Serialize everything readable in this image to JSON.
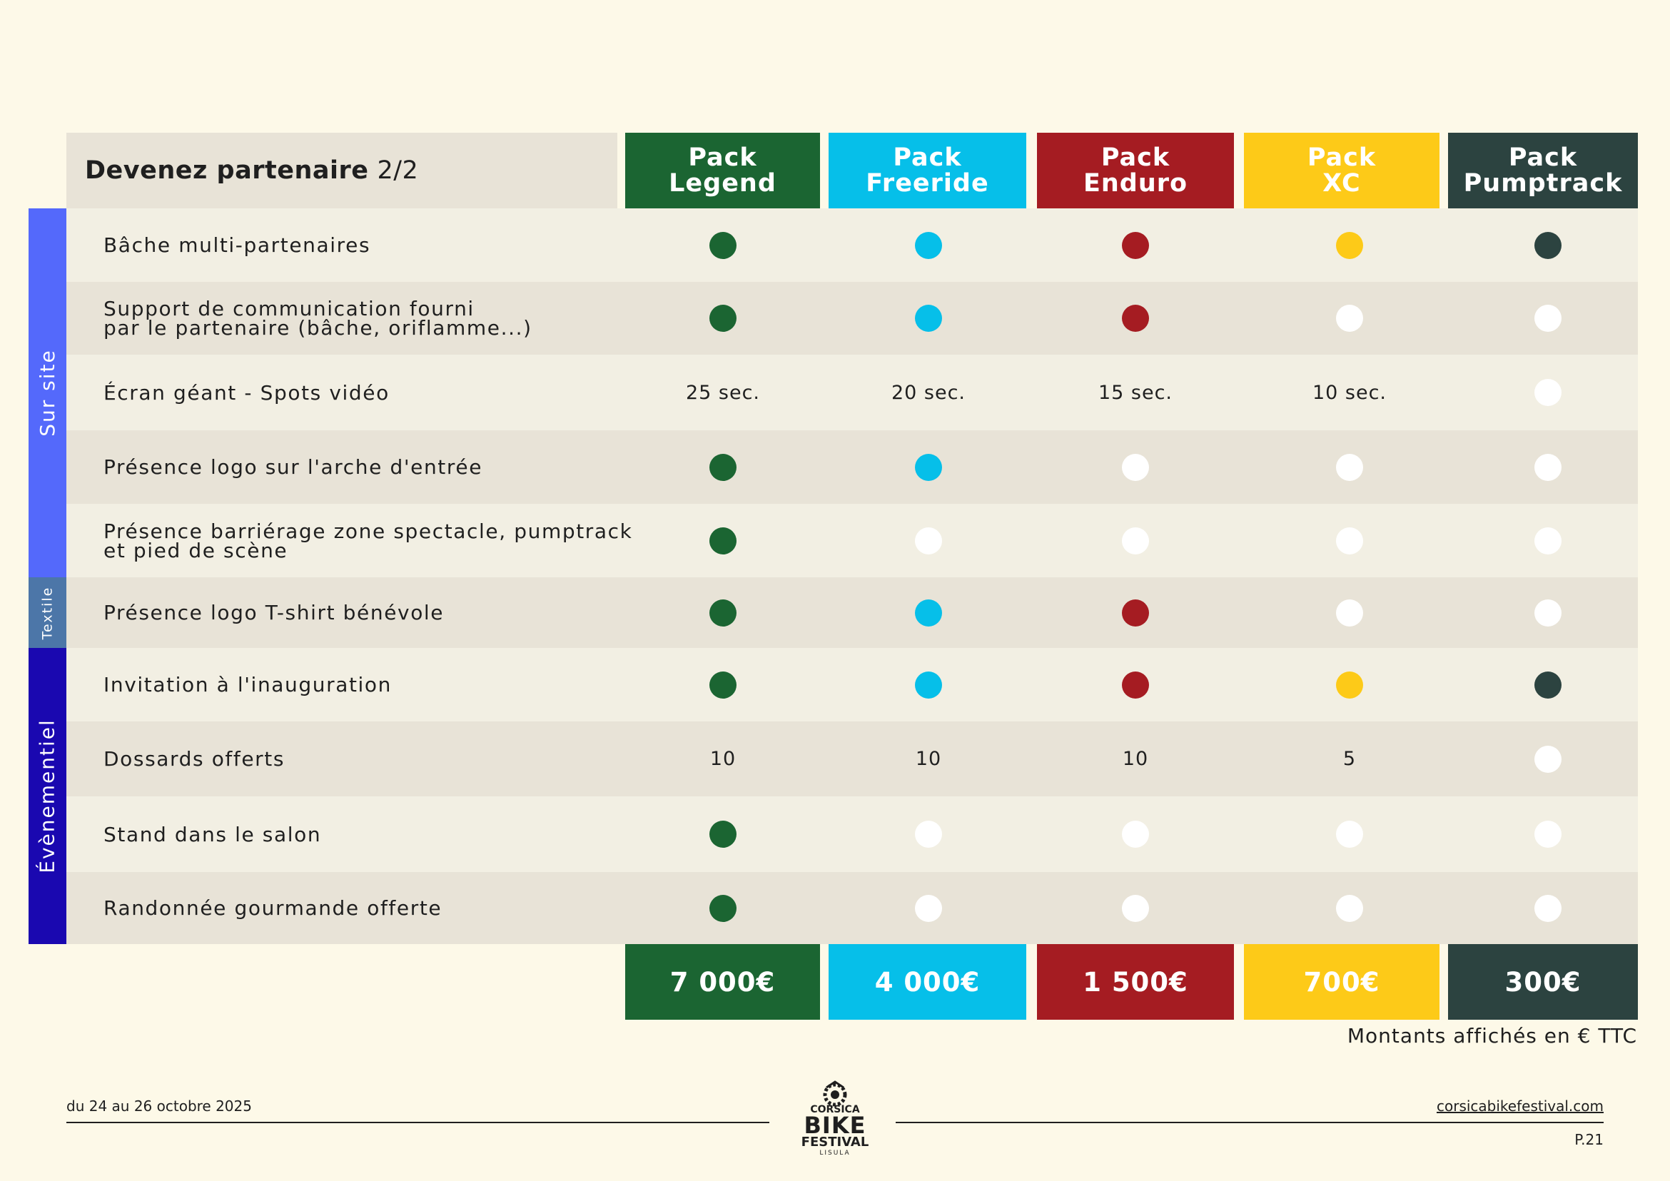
{
  "title": {
    "main": "Devenez partenaire",
    "page": "2/2"
  },
  "packs": [
    {
      "line1": "Pack",
      "line2": "Legend",
      "color": "#1b6532",
      "price": "7 000€"
    },
    {
      "line1": "Pack",
      "line2": "Freeride",
      "color": "#06bfe9",
      "price": "4 000€"
    },
    {
      "line1": "Pack",
      "line2": "Enduro",
      "color": "#a51c22",
      "price": "1 500€"
    },
    {
      "line1": "Pack",
      "line2": "XC",
      "color": "#fdca18",
      "price": "700€"
    },
    {
      "line1": "Pack",
      "line2": "Pumptrack",
      "color": "#2c4340",
      "price": "300€"
    }
  ],
  "sections": [
    {
      "label": "Sur site",
      "color": "#5469fb"
    },
    {
      "label": "Textile",
      "color": "#4c76a8"
    },
    {
      "label": "Évènementiel",
      "color": "#1a08b0"
    }
  ],
  "rows": [
    {
      "label": [
        "Bâche multi-partenaires"
      ],
      "cells": [
        "dot",
        "dot",
        "dot",
        "dot",
        "dot"
      ]
    },
    {
      "label": [
        "Support de communication fourni",
        "par le partenaire (bâche, oriflamme...)"
      ],
      "cells": [
        "dot",
        "dot",
        "dot",
        "empty",
        "empty"
      ]
    },
    {
      "label": [
        "Écran géant - Spots vidéo"
      ],
      "cells": [
        "25 sec.",
        "20 sec.",
        "15 sec.",
        "10 sec.",
        "empty"
      ]
    },
    {
      "label": [
        "Présence logo sur l'arche d'entrée"
      ],
      "cells": [
        "dot",
        "dot",
        "empty",
        "empty",
        "empty"
      ]
    },
    {
      "label": [
        "Présence barriérage zone spectacle, pumptrack",
        "et pied de scène"
      ],
      "cells": [
        "dot",
        "empty",
        "empty",
        "empty",
        "empty"
      ]
    },
    {
      "label": [
        "Présence logo T-shirt bénévole"
      ],
      "cells": [
        "dot",
        "dot",
        "dot",
        "empty",
        "empty"
      ]
    },
    {
      "label": [
        "Invitation à l'inauguration"
      ],
      "cells": [
        "dot",
        "dot",
        "dot",
        "dot",
        "dot"
      ]
    },
    {
      "label": [
        "Dossards offerts"
      ],
      "cells": [
        "10",
        "10",
        "10",
        "5",
        "empty"
      ]
    },
    {
      "label": [
        "Stand dans le salon"
      ],
      "cells": [
        "dot",
        "empty",
        "empty",
        "empty",
        "empty"
      ]
    },
    {
      "label": [
        "Randonnée gourmande offerte"
      ],
      "cells": [
        "dot",
        "empty",
        "empty",
        "empty",
        "empty"
      ]
    }
  ],
  "note": "Montants affichés en € TTC",
  "footer": {
    "dates": "du 24 au 26 octobre 2025",
    "website": "corsicabikefestival.com",
    "page_number": "P.21",
    "logo_text": [
      "CORSICA",
      "BIKE",
      "FESTIVAL",
      "LISULA"
    ]
  },
  "colors": {
    "background": "#fdf9e8",
    "row_light": "#f2efe3",
    "row_dark": "#e8e3d7",
    "empty_dot": "#ffffff"
  }
}
